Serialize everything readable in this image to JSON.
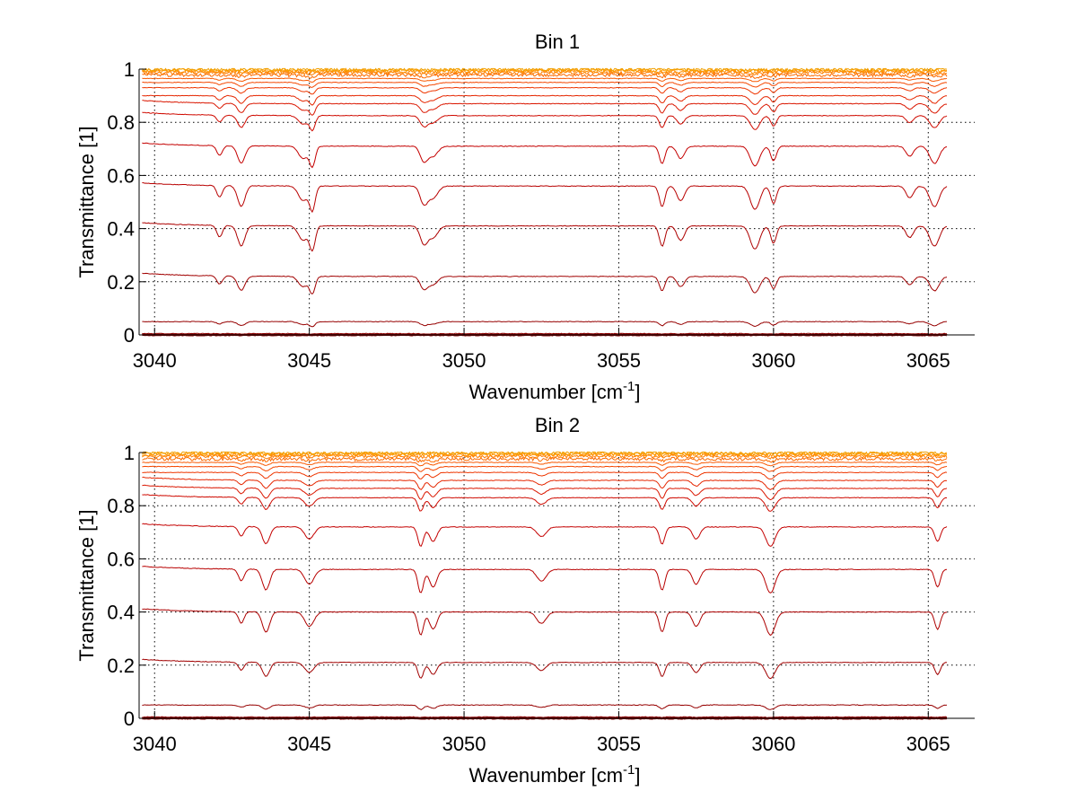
{
  "chart_data": [
    {
      "type": "line",
      "title": "Bin 1",
      "xlabel": "Wavenumber [cm",
      "xlabel_sup": "-1",
      "xlabel_end": "]",
      "ylabel": "Transmittance [1]",
      "xlim": [
        3039.5,
        3066.5
      ],
      "ylim": [
        0,
        1
      ],
      "x_ticks": [
        3040,
        3045,
        3050,
        3055,
        3060,
        3065
      ],
      "x_tick_labels": [
        "3040",
        "3045",
        "3050",
        "3055",
        "3060",
        "3065"
      ],
      "y_ticks": [
        0,
        0.2,
        0.4,
        0.6,
        0.8,
        1
      ],
      "y_tick_labels": [
        "0",
        "0.2",
        "0.4",
        "0.6",
        "0.8",
        "1"
      ],
      "grid": true,
      "x_range": [
        3039.6,
        3065.6
      ],
      "absorption_lines": [
        3042.1,
        3042.8,
        3044.8,
        3045.1,
        3048.7,
        3049.0,
        3056.4,
        3057.0,
        3059.4,
        3060.0,
        3064.4,
        3065.2
      ],
      "series_levels": [
        0.0,
        0.005,
        0.05,
        0.22,
        0.41,
        0.56,
        0.71,
        0.825,
        0.87,
        0.9,
        0.93,
        0.95,
        0.965,
        0.978,
        0.986,
        0.992,
        0.996,
        0.999
      ],
      "series_colors": [
        "#7f0000",
        "#8a0000",
        "#960000",
        "#a10000",
        "#ad0000",
        "#b80000",
        "#c40000",
        "#cf0a00",
        "#da1700",
        "#e52600",
        "#ee3600",
        "#f44700",
        "#f85800",
        "#fb6a00",
        "#fd7c00",
        "#fe8d00",
        "#ff9b00",
        "#f0a000"
      ]
    },
    {
      "type": "line",
      "title": "Bin 2",
      "xlabel": "Wavenumber [cm",
      "xlabel_sup": "-1",
      "xlabel_end": "]",
      "ylabel": "Transmittance [1]",
      "xlim": [
        3039.5,
        3066.5
      ],
      "ylim": [
        0,
        1
      ],
      "x_ticks": [
        3040,
        3045,
        3050,
        3055,
        3060,
        3065
      ],
      "x_tick_labels": [
        "3040",
        "3045",
        "3050",
        "3055",
        "3060",
        "3065"
      ],
      "y_ticks": [
        0,
        0.2,
        0.4,
        0.6,
        0.8,
        1
      ],
      "y_tick_labels": [
        "0",
        "0.2",
        "0.4",
        "0.6",
        "0.8",
        "1"
      ],
      "grid": true,
      "x_range": [
        3039.6,
        3065.6
      ],
      "absorption_lines": [
        3042.8,
        3043.6,
        3045.0,
        3048.6,
        3049.0,
        3052.5,
        3056.4,
        3057.5,
        3059.9,
        3065.3
      ],
      "series_levels": [
        0.0,
        0.005,
        0.05,
        0.21,
        0.4,
        0.56,
        0.72,
        0.83,
        0.865,
        0.895,
        0.925,
        0.947,
        0.963,
        0.976,
        0.986,
        0.992,
        0.996,
        0.999
      ],
      "series_colors": [
        "#7f0000",
        "#8a0000",
        "#960000",
        "#a10000",
        "#ad0000",
        "#b80000",
        "#c40000",
        "#cf0a00",
        "#da1700",
        "#e52600",
        "#ee3600",
        "#f44700",
        "#f85800",
        "#fb6a00",
        "#fd7c00",
        "#fe8d00",
        "#ff9b00",
        "#f0a000"
      ]
    }
  ]
}
